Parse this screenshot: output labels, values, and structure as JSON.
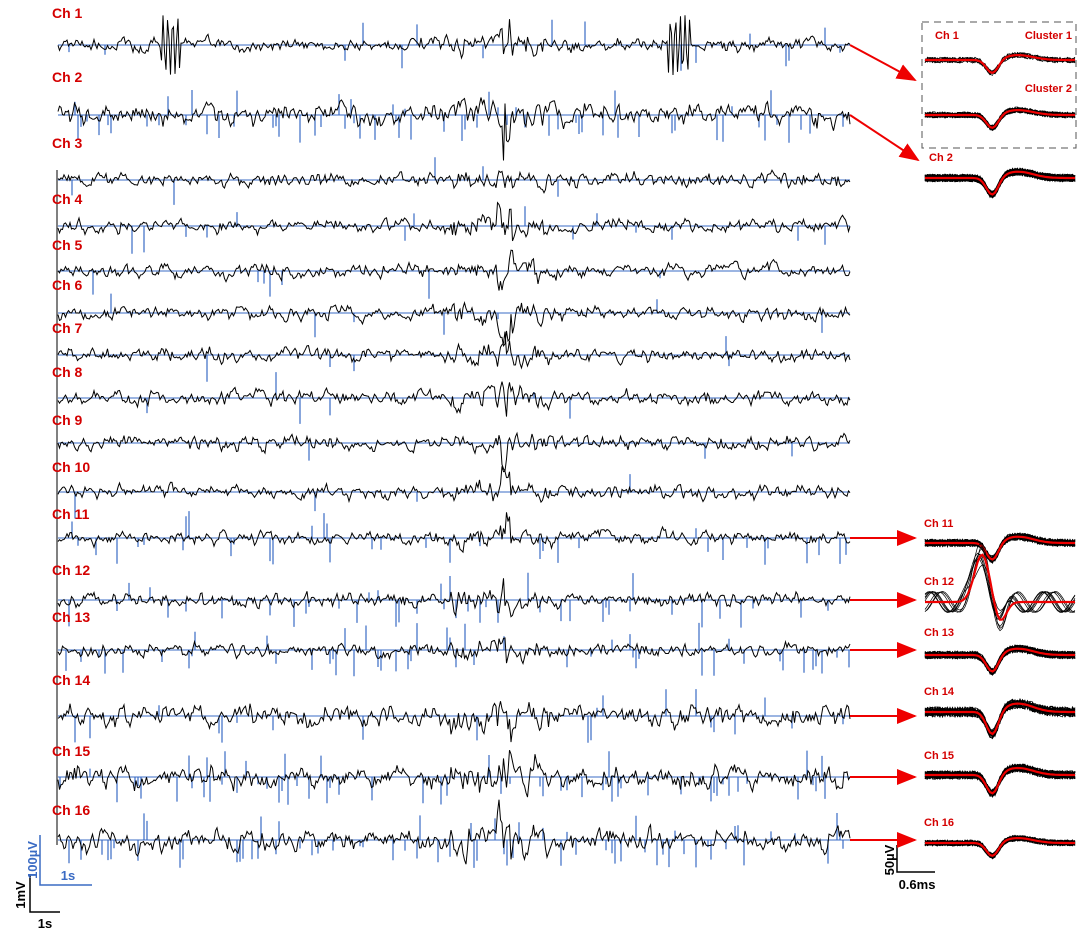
{
  "channels": [
    "Ch 1",
    "Ch 2",
    "Ch 3",
    "Ch 4",
    "Ch 5",
    "Ch 6",
    "Ch 7",
    "Ch 8",
    "Ch 9",
    "Ch 10",
    "Ch 11",
    "Ch 12",
    "Ch 13",
    "Ch 14",
    "Ch 15",
    "Ch 16"
  ],
  "spike_panels": [
    {
      "channel": "Ch 1",
      "clusters": [
        "Cluster 1",
        "Cluster 2"
      ]
    },
    {
      "channel": "Ch 2"
    },
    {
      "channel": "Ch 11"
    },
    {
      "channel": "Ch 12"
    },
    {
      "channel": "Ch 13"
    },
    {
      "channel": "Ch 14"
    },
    {
      "channel": "Ch 15"
    },
    {
      "channel": "Ch 16"
    }
  ],
  "scale_bars": {
    "filtered": {
      "voltage": "1mV",
      "time": "1s"
    },
    "raw": {
      "voltage": "100µV",
      "time": "1s"
    },
    "spike": {
      "voltage": "50µV",
      "time": "0.6ms"
    }
  }
}
